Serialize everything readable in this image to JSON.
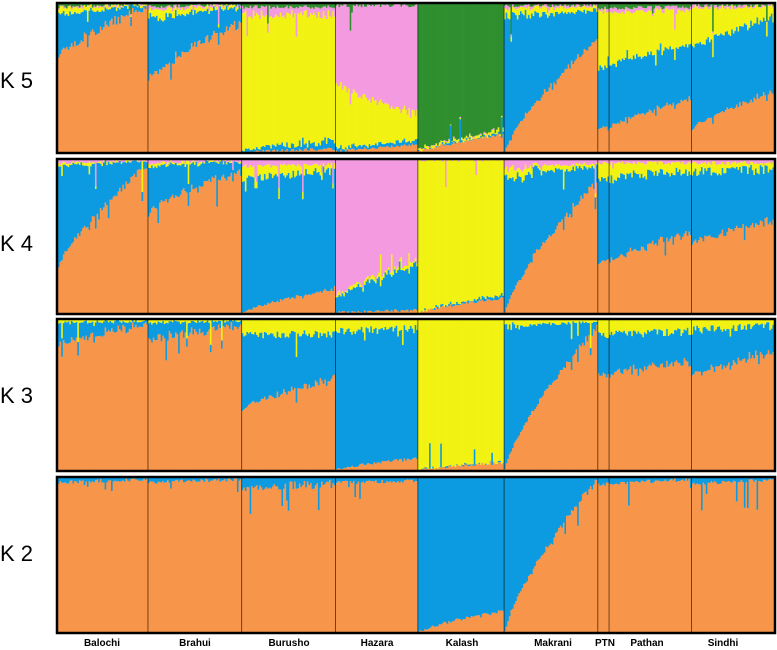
{
  "chart_data": {
    "type": "bar",
    "subtype": "stacked-admixture",
    "title": "",
    "xlabel": "",
    "ylabel": "",
    "ylim": [
      0,
      1
    ],
    "colors": {
      "orange": "#f7964a",
      "blue": "#0c9ae0",
      "yellow": "#f2f213",
      "pink": "#f49ae0",
      "green": "#2f8f2f"
    },
    "populations": [
      "Balochi",
      "Brahui",
      "Burusho",
      "Hazara",
      "Kalash",
      "Makrani",
      "PTN",
      "Pathan",
      "Sindhi"
    ],
    "pop_widths": [
      24,
      25,
      25,
      22,
      23,
      25,
      3,
      22,
      22
    ],
    "panels": [
      {
        "label": "K 5",
        "components": [
          "orange",
          "blue",
          "yellow",
          "pink",
          "green"
        ],
        "groups": [
          {
            "pop": "Balochi",
            "start": [
              0.64,
              0.28,
              0.05,
              0.01,
              0.02
            ],
            "end": [
              0.98,
              0.01,
              0.005,
              0.003,
              0.002
            ]
          },
          {
            "pop": "Brahui",
            "start": [
              0.48,
              0.42,
              0.06,
              0.02,
              0.02
            ],
            "end": [
              0.88,
              0.1,
              0.01,
              0.005,
              0.005
            ]
          },
          {
            "pop": "Burusho",
            "start": [
              0.0,
              0.01,
              0.92,
              0.05,
              0.02
            ],
            "end": [
              0.02,
              0.06,
              0.85,
              0.05,
              0.02
            ]
          },
          {
            "pop": "Hazara",
            "start": [
              0.0,
              0.02,
              0.45,
              0.52,
              0.01
            ],
            "end": [
              0.05,
              0.03,
              0.18,
              0.73,
              0.01
            ]
          },
          {
            "pop": "Kalash",
            "start": [
              0.0,
              0.0,
              0.01,
              0.0,
              0.99
            ],
            "end": [
              0.12,
              0.01,
              0.02,
              0.0,
              0.85
            ]
          },
          {
            "pop": "Makrani",
            "start": [
              0.0,
              0.92,
              0.05,
              0.02,
              0.01
            ],
            "end": [
              0.76,
              0.19,
              0.03,
              0.01,
              0.01
            ]
          },
          {
            "pop": "PTN",
            "start": [
              0.15,
              0.42,
              0.38,
              0.02,
              0.03
            ],
            "end": [
              0.18,
              0.4,
              0.37,
              0.02,
              0.03
            ]
          },
          {
            "pop": "Pathan",
            "start": [
              0.16,
              0.42,
              0.36,
              0.03,
              0.03
            ],
            "end": [
              0.36,
              0.36,
              0.24,
              0.02,
              0.02
            ]
          },
          {
            "pop": "Sindhi",
            "start": [
              0.15,
              0.55,
              0.27,
              0.02,
              0.01
            ],
            "end": [
              0.4,
              0.5,
              0.08,
              0.01,
              0.01
            ]
          }
        ]
      },
      {
        "label": "K 4",
        "components": [
          "orange",
          "blue",
          "yellow",
          "pink"
        ],
        "groups": [
          {
            "pop": "Balochi",
            "start": [
              0.3,
              0.66,
              0.02,
              0.02
            ],
            "end": [
              0.96,
              0.03,
              0.005,
              0.005
            ]
          },
          {
            "pop": "Brahui",
            "start": [
              0.66,
              0.3,
              0.02,
              0.02
            ],
            "end": [
              0.93,
              0.06,
              0.005,
              0.005
            ]
          },
          {
            "pop": "Burusho",
            "start": [
              0.0,
              0.88,
              0.08,
              0.04
            ],
            "end": [
              0.16,
              0.76,
              0.05,
              0.03
            ]
          },
          {
            "pop": "Hazara",
            "start": [
              0.0,
              0.08,
              0.02,
              0.9
            ],
            "end": [
              0.02,
              0.3,
              0.02,
              0.66
            ]
          },
          {
            "pop": "Kalash",
            "start": [
              0.0,
              0.0,
              1.0,
              0.0
            ],
            "end": [
              0.1,
              0.02,
              0.88,
              0.0
            ]
          },
          {
            "pop": "Makrani",
            "start": [
              0.0,
              0.88,
              0.06,
              0.06
            ],
            "end": [
              0.86,
              0.1,
              0.02,
              0.02
            ]
          },
          {
            "pop": "PTN",
            "start": [
              0.33,
              0.55,
              0.1,
              0.02
            ],
            "end": [
              0.35,
              0.53,
              0.1,
              0.02
            ]
          },
          {
            "pop": "Pathan",
            "start": [
              0.33,
              0.55,
              0.1,
              0.02
            ],
            "end": [
              0.52,
              0.4,
              0.06,
              0.02
            ]
          },
          {
            "pop": "Sindhi",
            "start": [
              0.45,
              0.47,
              0.06,
              0.02
            ],
            "end": [
              0.6,
              0.34,
              0.04,
              0.02
            ]
          }
        ]
      },
      {
        "label": "K 3",
        "components": [
          "orange",
          "blue",
          "yellow"
        ],
        "groups": [
          {
            "pop": "Balochi",
            "start": [
              0.83,
              0.15,
              0.02
            ],
            "end": [
              0.97,
              0.025,
              0.005
            ]
          },
          {
            "pop": "Brahui",
            "start": [
              0.86,
              0.12,
              0.02
            ],
            "end": [
              0.96,
              0.035,
              0.005
            ]
          },
          {
            "pop": "Burusho",
            "start": [
              0.4,
              0.49,
              0.11
            ],
            "end": [
              0.61,
              0.3,
              0.09
            ]
          },
          {
            "pop": "Hazara",
            "start": [
              0.0,
              0.92,
              0.08
            ],
            "end": [
              0.08,
              0.86,
              0.06
            ]
          },
          {
            "pop": "Kalash",
            "start": [
              0.0,
              0.0,
              1.0
            ],
            "end": [
              0.05,
              0.0,
              0.95
            ]
          },
          {
            "pop": "Makrani",
            "start": [
              0.0,
              0.95,
              0.05
            ],
            "end": [
              0.96,
              0.03,
              0.01
            ]
          },
          {
            "pop": "PTN",
            "start": [
              0.63,
              0.27,
              0.1
            ],
            "end": [
              0.64,
              0.26,
              0.1
            ]
          },
          {
            "pop": "Pathan",
            "start": [
              0.63,
              0.27,
              0.1
            ],
            "end": [
              0.72,
              0.2,
              0.08
            ]
          },
          {
            "pop": "Sindhi",
            "start": [
              0.63,
              0.3,
              0.07
            ],
            "end": [
              0.78,
              0.18,
              0.04
            ]
          }
        ]
      },
      {
        "label": "K 2",
        "components": [
          "orange",
          "blue"
        ],
        "groups": [
          {
            "pop": "Balochi",
            "start": [
              0.97,
              0.03
            ],
            "end": [
              0.99,
              0.01
            ]
          },
          {
            "pop": "Brahui",
            "start": [
              0.97,
              0.03
            ],
            "end": [
              0.99,
              0.01
            ]
          },
          {
            "pop": "Burusho",
            "start": [
              0.94,
              0.06
            ],
            "end": [
              0.96,
              0.04
            ]
          },
          {
            "pop": "Hazara",
            "start": [
              0.97,
              0.03
            ],
            "end": [
              0.98,
              0.02
            ]
          },
          {
            "pop": "Kalash",
            "start": [
              0.0,
              1.0
            ],
            "end": [
              0.14,
              0.86
            ]
          },
          {
            "pop": "Makrani",
            "start": [
              0.0,
              1.0
            ],
            "end": [
              0.99,
              0.01
            ]
          },
          {
            "pop": "PTN",
            "start": [
              0.96,
              0.04
            ],
            "end": [
              0.96,
              0.04
            ]
          },
          {
            "pop": "Pathan",
            "start": [
              0.96,
              0.04
            ],
            "end": [
              0.99,
              0.01
            ]
          },
          {
            "pop": "Sindhi",
            "start": [
              0.96,
              0.04
            ],
            "end": [
              0.99,
              0.01
            ]
          }
        ]
      }
    ]
  }
}
